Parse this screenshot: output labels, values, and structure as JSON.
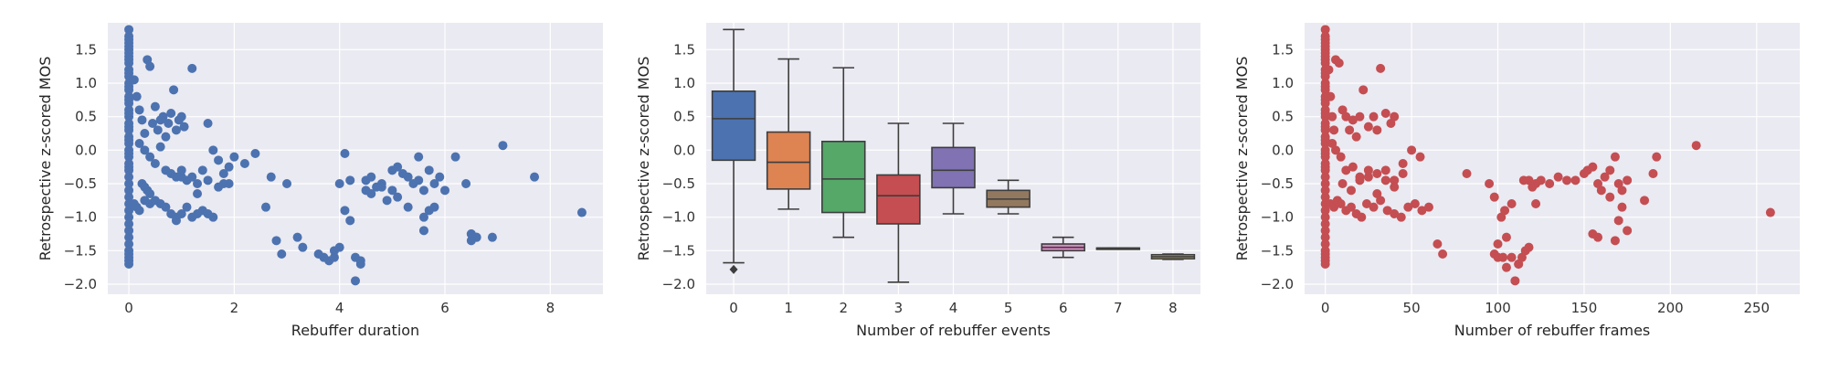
{
  "chart_data": [
    {
      "type": "scatter",
      "xlabel": "Rebuffer duration",
      "ylabel": "Retrospective z-scored MOS",
      "xlim": [
        -0.4,
        9.0
      ],
      "ylim": [
        -2.15,
        1.9
      ],
      "xticks": [
        0,
        2,
        4,
        6,
        8
      ],
      "yticks": [
        -2.0,
        -1.5,
        -1.0,
        -0.5,
        0.0,
        0.5,
        1.0,
        1.5
      ],
      "grid": true,
      "color": "#4c72b0",
      "x": [
        0,
        0,
        0,
        0,
        0,
        0,
        0,
        0,
        0,
        0,
        0,
        0,
        0,
        0,
        0,
        0,
        0,
        0,
        0,
        0,
        0,
        0,
        0,
        0,
        0,
        0,
        0,
        0,
        0,
        0,
        0,
        0,
        0,
        0,
        0,
        0,
        0,
        0,
        0,
        0,
        0,
        0,
        0,
        0,
        0,
        0,
        0,
        0,
        0,
        0,
        0.1,
        0.15,
        0.2,
        0.25,
        0.3,
        0.35,
        0.4,
        0.45,
        0.5,
        0.55,
        0.6,
        0.65,
        0.7,
        0.75,
        0.8,
        0.85,
        0.9,
        0.95,
        1.0,
        1.05,
        0.1,
        0.15,
        0.2,
        0.3,
        0.4,
        0.5,
        0.6,
        0.7,
        0.8,
        0.9,
        1.0,
        1.1,
        1.2,
        1.3,
        1.4,
        1.5,
        1.6,
        1.7,
        1.8,
        1.9,
        0.2,
        0.3,
        0.4,
        0.5,
        0.6,
        0.7,
        0.8,
        0.9,
        1.0,
        1.1,
        1.2,
        1.3,
        1.4,
        1.5,
        1.6,
        1.7,
        1.8,
        1.9,
        2.0,
        0.25,
        0.3,
        0.35,
        0.4,
        0.9,
        1.0,
        1.2,
        1.3,
        1.5,
        2.2,
        2.4,
        2.6,
        2.7,
        2.8,
        2.9,
        3.0,
        3.2,
        3.3,
        3.6,
        3.7,
        3.8,
        3.9,
        4.0,
        4.1,
        4.2,
        4.3,
        4.4,
        4.5,
        4.6,
        4.7,
        4.8,
        4.9,
        5.0,
        5.1,
        5.2,
        5.3,
        5.4,
        5.5,
        5.6,
        5.7,
        5.8,
        5.9,
        6.0,
        6.2,
        6.4,
        6.5,
        6.6,
        6.9,
        7.1,
        7.7,
        8.6,
        4.0,
        4.1,
        4.3,
        4.5,
        4.6,
        4.8,
        5.0,
        5.1,
        5.3,
        5.6,
        5.7,
        5.8,
        6.5,
        6.6,
        3.9,
        4.2,
        4.4,
        5.5,
        5.6,
        6.5
      ],
      "y": [
        1.8,
        1.7,
        1.6,
        1.55,
        1.5,
        1.45,
        1.4,
        1.3,
        1.2,
        1.1,
        1.0,
        0.9,
        0.8,
        0.7,
        0.6,
        0.5,
        0.4,
        0.3,
        0.2,
        0.1,
        0.0,
        -0.1,
        -0.2,
        -0.3,
        -0.4,
        -0.5,
        -0.6,
        -0.7,
        -0.8,
        -0.9,
        -1.0,
        -1.1,
        -1.2,
        -1.3,
        -1.4,
        -1.5,
        -1.55,
        -1.6,
        -1.65,
        -1.7,
        1.65,
        1.35,
        1.15,
        0.95,
        0.75,
        0.55,
        0.35,
        0.15,
        -0.05,
        -0.25,
        1.05,
        0.8,
        0.6,
        0.45,
        0.25,
        1.35,
        1.25,
        0.4,
        0.65,
        0.3,
        0.45,
        0.5,
        0.2,
        0.4,
        0.55,
        0.9,
        0.3,
        0.45,
        0.5,
        0.35,
        -0.8,
        -0.85,
        -0.9,
        -0.75,
        -0.8,
        -0.75,
        -0.8,
        -0.85,
        -0.95,
        -1.0,
        -0.95,
        -0.85,
        -1.0,
        -0.95,
        -0.9,
        -0.95,
        -1.0,
        -0.55,
        -0.5,
        -0.5,
        0.1,
        0.0,
        -0.1,
        -0.2,
        0.05,
        -0.3,
        -0.35,
        -0.4,
        -0.3,
        -0.45,
        -0.4,
        -0.5,
        -0.3,
        -0.45,
        0.0,
        -0.15,
        -0.35,
        -0.25,
        -0.1,
        -0.5,
        -0.55,
        -0.6,
        -0.65,
        -1.05,
        -0.4,
        1.22,
        -0.65,
        0.4,
        -0.2,
        -0.05,
        -0.85,
        -0.4,
        -1.35,
        -1.55,
        -0.5,
        -1.3,
        -1.45,
        -1.55,
        -1.6,
        -1.65,
        -1.6,
        -1.45,
        -0.05,
        -0.45,
        -1.6,
        -1.65,
        -0.45,
        -0.4,
        -0.55,
        -0.5,
        -0.75,
        -0.3,
        -0.25,
        -0.35,
        -0.4,
        -0.5,
        -0.1,
        -0.6,
        -0.3,
        -0.5,
        -0.4,
        -0.6,
        -0.1,
        -0.5,
        -1.25,
        -1.3,
        -1.3,
        0.07,
        -0.4,
        -0.93,
        -0.5,
        -0.9,
        -1.95,
        -0.6,
        -0.65,
        -0.55,
        -0.6,
        -0.7,
        -0.85,
        -1.0,
        -0.9,
        -0.85,
        -1.25,
        -1.3,
        -1.5,
        -1.05,
        -1.7,
        -0.45,
        -1.2,
        -1.35
      ]
    },
    {
      "type": "box",
      "xlabel": "Number of rebuffer events",
      "ylabel": "Retrospective z-scored MOS",
      "categories": [
        "0",
        "1",
        "2",
        "3",
        "4",
        "5",
        "6",
        "7",
        "8"
      ],
      "ylim": [
        -2.15,
        1.9
      ],
      "yticks": [
        -2.0,
        -1.5,
        -1.0,
        -0.5,
        0.0,
        0.5,
        1.0,
        1.5
      ],
      "grid": true,
      "boxes": [
        {
          "whislo": -1.68,
          "q1": -0.15,
          "med": 0.47,
          "q3": 0.88,
          "whishi": 1.8,
          "fliers": [
            -1.78
          ],
          "color": "#4c72b0"
        },
        {
          "whislo": -0.88,
          "q1": -0.58,
          "med": -0.18,
          "q3": 0.27,
          "whishi": 1.36,
          "fliers": [],
          "color": "#dd8452"
        },
        {
          "whislo": -1.3,
          "q1": -0.93,
          "med": -0.43,
          "q3": 0.13,
          "whishi": 1.23,
          "fliers": [],
          "color": "#55a868"
        },
        {
          "whislo": -1.97,
          "q1": -1.1,
          "med": -0.68,
          "q3": -0.37,
          "whishi": 0.4,
          "fliers": [],
          "color": "#c44e52"
        },
        {
          "whislo": -0.95,
          "q1": -0.56,
          "med": -0.3,
          "q3": 0.04,
          "whishi": 0.4,
          "fliers": [],
          "color": "#8172b3"
        },
        {
          "whislo": -0.95,
          "q1": -0.85,
          "med": -0.73,
          "q3": -0.6,
          "whishi": -0.45,
          "fliers": [],
          "color": "#937860"
        },
        {
          "whislo": -1.6,
          "q1": -1.5,
          "med": -1.45,
          "q3": -1.4,
          "whishi": -1.3,
          "fliers": [],
          "color": "#da8bc3"
        },
        {
          "whislo": -1.46,
          "q1": -1.46,
          "med": -1.46,
          "q3": -1.46,
          "whishi": -1.46,
          "fliers": [],
          "color": "#8c8c8c"
        },
        {
          "whislo": -1.63,
          "q1": -1.62,
          "med": -1.59,
          "q3": -1.56,
          "whishi": -1.55,
          "fliers": [],
          "color": "#ccb974"
        }
      ]
    },
    {
      "type": "scatter",
      "xlabel": "Number of rebuffer frames",
      "ylabel": "Retrospective z-scored MOS",
      "xlim": [
        -12,
        275
      ],
      "ylim": [
        -2.15,
        1.9
      ],
      "xticks": [
        0,
        50,
        100,
        150,
        200,
        250
      ],
      "yticks": [
        -2.0,
        -1.5,
        -1.0,
        -0.5,
        0.0,
        0.5,
        1.0,
        1.5
      ],
      "grid": true,
      "color": "#c44e52",
      "x": [
        0,
        0,
        0,
        0,
        0,
        0,
        0,
        0,
        0,
        0,
        0,
        0,
        0,
        0,
        0,
        0,
        0,
        0,
        0,
        0,
        0,
        0,
        0,
        0,
        0,
        0,
        0,
        0,
        0,
        0,
        0,
        0,
        0,
        0,
        0,
        0,
        0,
        0,
        0,
        0,
        0,
        0,
        0,
        0,
        0,
        0,
        0,
        0,
        0,
        0,
        2,
        3,
        4,
        5,
        6,
        8,
        10,
        12,
        14,
        16,
        18,
        20,
        22,
        25,
        28,
        30,
        32,
        35,
        38,
        40,
        3,
        5,
        7,
        9,
        12,
        15,
        18,
        21,
        24,
        28,
        32,
        36,
        40,
        44,
        48,
        52,
        56,
        60,
        4,
        6,
        9,
        12,
        16,
        20,
        25,
        30,
        35,
        40,
        45,
        50,
        55,
        10,
        15,
        20,
        25,
        30,
        35,
        40,
        45,
        65,
        68,
        82,
        95,
        98,
        100,
        102,
        104,
        105,
        108,
        110,
        112,
        114,
        116,
        118,
        120,
        122,
        125,
        130,
        135,
        140,
        145,
        150,
        152,
        155,
        158,
        160,
        162,
        165,
        168,
        170,
        172,
        175,
        185,
        190,
        192,
        215,
        258,
        98,
        100,
        103,
        105,
        108,
        112,
        115,
        118,
        122,
        155,
        158,
        165,
        168,
        170,
        172,
        175
      ],
      "y": [
        1.8,
        1.7,
        1.6,
        1.55,
        1.5,
        1.45,
        1.4,
        1.3,
        1.2,
        1.1,
        1.0,
        0.9,
        0.8,
        0.7,
        0.6,
        0.5,
        0.4,
        0.3,
        0.2,
        0.1,
        0.0,
        -0.1,
        -0.2,
        -0.3,
        -0.4,
        -0.5,
        -0.6,
        -0.7,
        -0.8,
        -0.9,
        -1.0,
        -1.1,
        -1.2,
        -1.3,
        -1.4,
        -1.5,
        -1.55,
        -1.6,
        -1.65,
        -1.7,
        1.65,
        1.35,
        1.15,
        0.95,
        0.75,
        0.55,
        0.35,
        0.15,
        -0.05,
        -0.25,
        1.2,
        0.8,
        0.5,
        0.3,
        1.35,
        1.3,
        0.6,
        0.5,
        0.3,
        0.45,
        0.2,
        0.5,
        0.9,
        0.35,
        0.5,
        0.3,
        1.22,
        0.55,
        0.4,
        0.5,
        -0.8,
        -0.85,
        -0.75,
        -0.8,
        -0.9,
        -0.85,
        -0.95,
        -1.0,
        -0.8,
        -0.85,
        -0.75,
        -0.9,
        -0.95,
        -1.0,
        -0.85,
        -0.8,
        -0.9,
        -0.85,
        0.1,
        0.0,
        -0.1,
        -0.3,
        -0.25,
        -0.45,
        -0.4,
        -0.35,
        -0.3,
        -0.45,
        -0.2,
        0.0,
        -0.1,
        -0.5,
        -0.6,
        -0.4,
        -0.3,
        -0.65,
        -0.45,
        -0.55,
        -0.35,
        -1.4,
        -1.55,
        -0.35,
        -0.5,
        -1.55,
        -1.6,
        -1.0,
        -0.9,
        -1.3,
        -1.6,
        -1.95,
        -1.7,
        -1.6,
        -1.5,
        -0.45,
        -0.55,
        -0.8,
        -0.45,
        -0.5,
        -0.4,
        -0.45,
        -0.45,
        -0.35,
        -0.3,
        -0.25,
        -0.5,
        -0.6,
        -0.4,
        -0.3,
        -0.1,
        -0.5,
        -0.6,
        -0.45,
        -0.75,
        -0.35,
        -0.1,
        0.07,
        -0.93,
        -0.7,
        -1.4,
        -1.6,
        -1.75,
        -0.8,
        -1.7,
        -0.45,
        -1.45,
        -0.5,
        -1.25,
        -1.3,
        -0.7,
        -1.35,
        -1.05,
        -0.85,
        -1.2
      ]
    }
  ]
}
